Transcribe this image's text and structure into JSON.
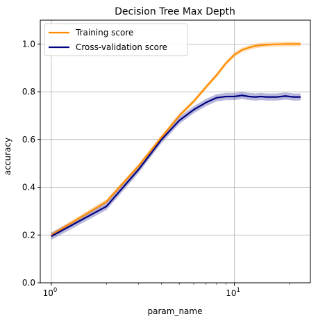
{
  "chart_data": {
    "type": "line",
    "title": "Decision Tree Max Depth",
    "xlabel": "param_name",
    "ylabel": "accuracy",
    "xscale": "log",
    "xlim": [
      0.87,
      26
    ],
    "ylim": [
      0.0,
      1.1
    ],
    "grid": true,
    "legend_position": "top-left",
    "x_ticks": [
      {
        "value": 1,
        "base": "10",
        "exp": "0"
      },
      {
        "value": 10,
        "base": "10",
        "exp": "1"
      }
    ],
    "y_ticks": [
      "0.0",
      "0.2",
      "0.4",
      "0.6",
      "0.8",
      "1.0"
    ],
    "x": [
      1,
      2,
      3,
      4,
      5,
      6,
      7,
      8,
      9,
      10,
      11,
      12,
      13,
      14,
      15,
      16,
      17,
      18,
      19,
      20,
      21,
      22,
      23
    ],
    "series": [
      {
        "name": "Training score",
        "color": "#ff8c00",
        "values": [
          0.2,
          0.34,
          0.49,
          0.61,
          0.7,
          0.76,
          0.82,
          0.87,
          0.92,
          0.955,
          0.975,
          0.985,
          0.992,
          0.995,
          0.997,
          0.998,
          0.999,
          0.999,
          1.0,
          1.0,
          1.0,
          1.0,
          1.0
        ],
        "band": 0.01
      },
      {
        "name": "Cross-validation score",
        "color": "#000080",
        "values": [
          0.195,
          0.32,
          0.475,
          0.6,
          0.68,
          0.725,
          0.755,
          0.775,
          0.78,
          0.78,
          0.785,
          0.78,
          0.778,
          0.78,
          0.778,
          0.778,
          0.778,
          0.78,
          0.782,
          0.78,
          0.778,
          0.778,
          0.778
        ],
        "band": 0.015
      }
    ]
  }
}
